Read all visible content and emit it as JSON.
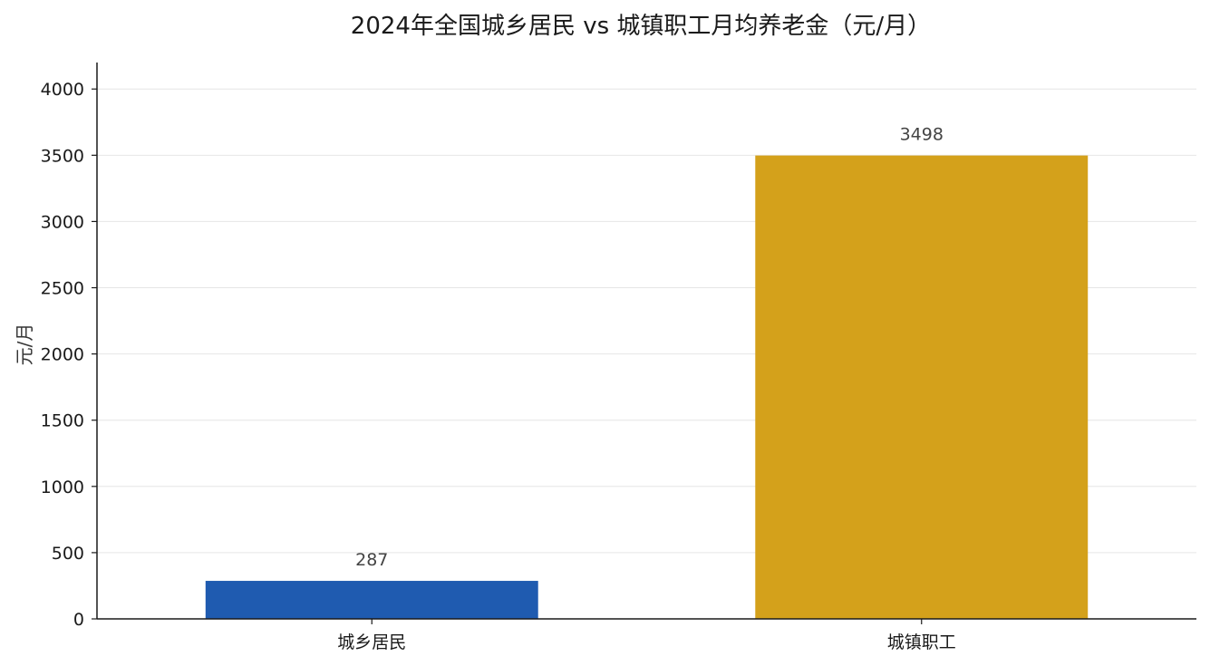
{
  "chart_data": {
    "type": "bar",
    "title": "2024年全国城乡居民 vs 城镇职工月均养老金（元/月）",
    "xlabel": "",
    "ylabel": "元/月",
    "categories": [
      "城乡居民",
      "城镇职工"
    ],
    "values": [
      287,
      3498
    ],
    "value_labels": [
      "287",
      "3498"
    ],
    "colors": [
      "#1f5bb0",
      "#d4a11b"
    ],
    "ylim": [
      0,
      4200
    ],
    "yticks": [
      0,
      500,
      1000,
      1500,
      2000,
      2500,
      3000,
      3500,
      4000
    ],
    "grid": "horizontal",
    "legend": "none"
  }
}
